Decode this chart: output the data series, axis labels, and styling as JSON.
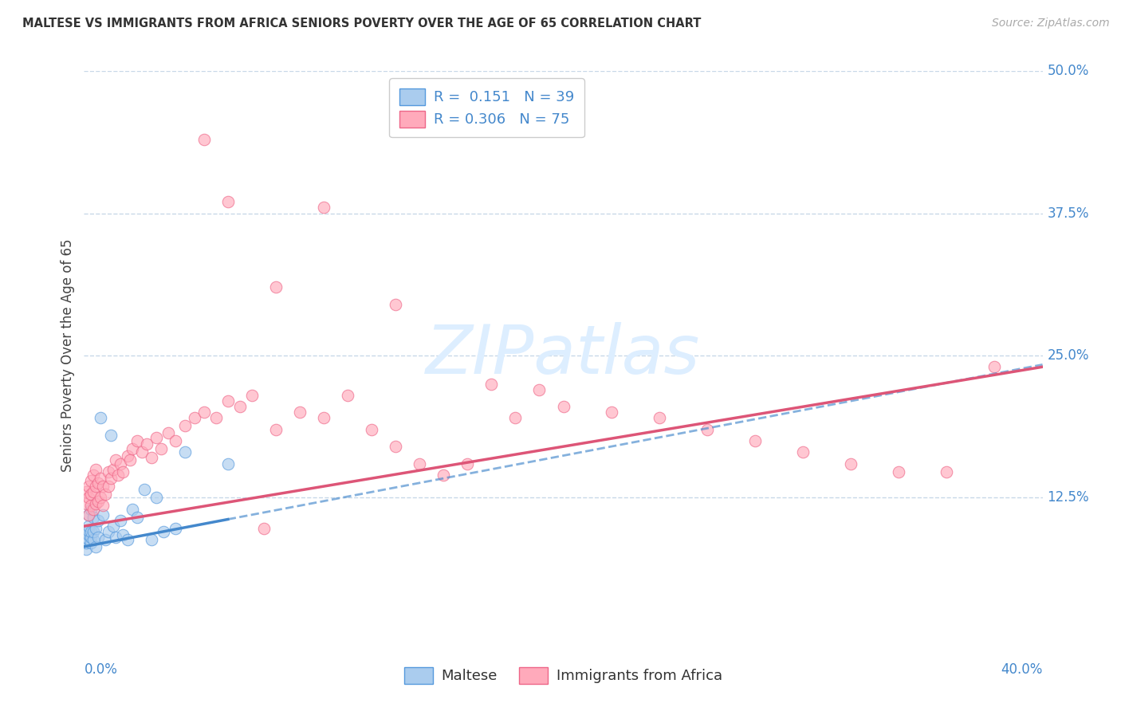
{
  "title": "MALTESE VS IMMIGRANTS FROM AFRICA SENIORS POVERTY OVER THE AGE OF 65 CORRELATION CHART",
  "source": "Source: ZipAtlas.com",
  "ylabel": "Seniors Poverty Over the Age of 65",
  "xlim": [
    0.0,
    0.4
  ],
  "ylim": [
    0.0,
    0.5
  ],
  "ytick_values": [
    0.125,
    0.25,
    0.375,
    0.5
  ],
  "ytick_labels": [
    "12.5%",
    "25.0%",
    "37.5%",
    "50.0%"
  ],
  "xtick_left_label": "0.0%",
  "xtick_right_label": "40.0%",
  "legend_line1": "R =  0.151   N = 39",
  "legend_line2": "R = 0.306   N = 75",
  "color_blue_fill": "#aaccee",
  "color_blue_edge": "#5599dd",
  "color_blue_line": "#4488cc",
  "color_pink_fill": "#ffaabb",
  "color_pink_edge": "#ee6688",
  "color_pink_line": "#dd5577",
  "color_tick_label": "#4488cc",
  "color_title": "#333333",
  "color_source": "#aaaaaa",
  "color_grid": "#c8d8e8",
  "color_watermark": "#ddeeff",
  "watermark_text": "ZIPatlas",
  "legend_label_1": "Maltese",
  "legend_label_2": "Immigrants from Africa",
  "scatter_size": 110,
  "scatter_alpha": 0.65,
  "line_width": 2.5,
  "maltese_n": 39,
  "africa_n": 75,
  "maltese_x": [
    0.001,
    0.001,
    0.001,
    0.001,
    0.002,
    0.002,
    0.002,
    0.002,
    0.002,
    0.003,
    0.003,
    0.003,
    0.003,
    0.004,
    0.004,
    0.004,
    0.005,
    0.005,
    0.006,
    0.006,
    0.007,
    0.008,
    0.009,
    0.01,
    0.011,
    0.012,
    0.013,
    0.015,
    0.016,
    0.018,
    0.02,
    0.022,
    0.025,
    0.028,
    0.03,
    0.033,
    0.038,
    0.042,
    0.06
  ],
  "maltese_y": [
    0.08,
    0.085,
    0.09,
    0.095,
    0.088,
    0.092,
    0.096,
    0.1,
    0.11,
    0.085,
    0.09,
    0.095,
    0.115,
    0.088,
    0.095,
    0.108,
    0.082,
    0.098,
    0.09,
    0.105,
    0.195,
    0.11,
    0.088,
    0.095,
    0.18,
    0.1,
    0.09,
    0.105,
    0.092,
    0.088,
    0.115,
    0.108,
    0.132,
    0.088,
    0.125,
    0.095,
    0.098,
    0.165,
    0.155
  ],
  "africa_x": [
    0.001,
    0.001,
    0.002,
    0.002,
    0.002,
    0.003,
    0.003,
    0.003,
    0.004,
    0.004,
    0.004,
    0.005,
    0.005,
    0.005,
    0.006,
    0.006,
    0.007,
    0.007,
    0.008,
    0.008,
    0.009,
    0.01,
    0.01,
    0.011,
    0.012,
    0.013,
    0.014,
    0.015,
    0.016,
    0.018,
    0.019,
    0.02,
    0.022,
    0.024,
    0.026,
    0.028,
    0.03,
    0.032,
    0.035,
    0.038,
    0.042,
    0.046,
    0.05,
    0.055,
    0.06,
    0.065,
    0.07,
    0.075,
    0.08,
    0.09,
    0.1,
    0.11,
    0.12,
    0.13,
    0.14,
    0.15,
    0.16,
    0.17,
    0.18,
    0.19,
    0.2,
    0.22,
    0.24,
    0.26,
    0.28,
    0.3,
    0.32,
    0.34,
    0.36,
    0.38,
    0.05,
    0.06,
    0.08,
    0.1,
    0.13
  ],
  "africa_y": [
    0.12,
    0.13,
    0.11,
    0.125,
    0.135,
    0.118,
    0.128,
    0.14,
    0.115,
    0.13,
    0.145,
    0.12,
    0.135,
    0.15,
    0.122,
    0.138,
    0.125,
    0.142,
    0.118,
    0.135,
    0.128,
    0.135,
    0.148,
    0.142,
    0.15,
    0.158,
    0.145,
    0.155,
    0.148,
    0.162,
    0.158,
    0.168,
    0.175,
    0.165,
    0.172,
    0.16,
    0.178,
    0.168,
    0.182,
    0.175,
    0.188,
    0.195,
    0.2,
    0.195,
    0.21,
    0.205,
    0.215,
    0.098,
    0.185,
    0.2,
    0.195,
    0.215,
    0.185,
    0.17,
    0.155,
    0.145,
    0.155,
    0.225,
    0.195,
    0.22,
    0.205,
    0.2,
    0.195,
    0.185,
    0.175,
    0.165,
    0.155,
    0.148,
    0.148,
    0.24,
    0.44,
    0.385,
    0.31,
    0.38,
    0.295
  ]
}
